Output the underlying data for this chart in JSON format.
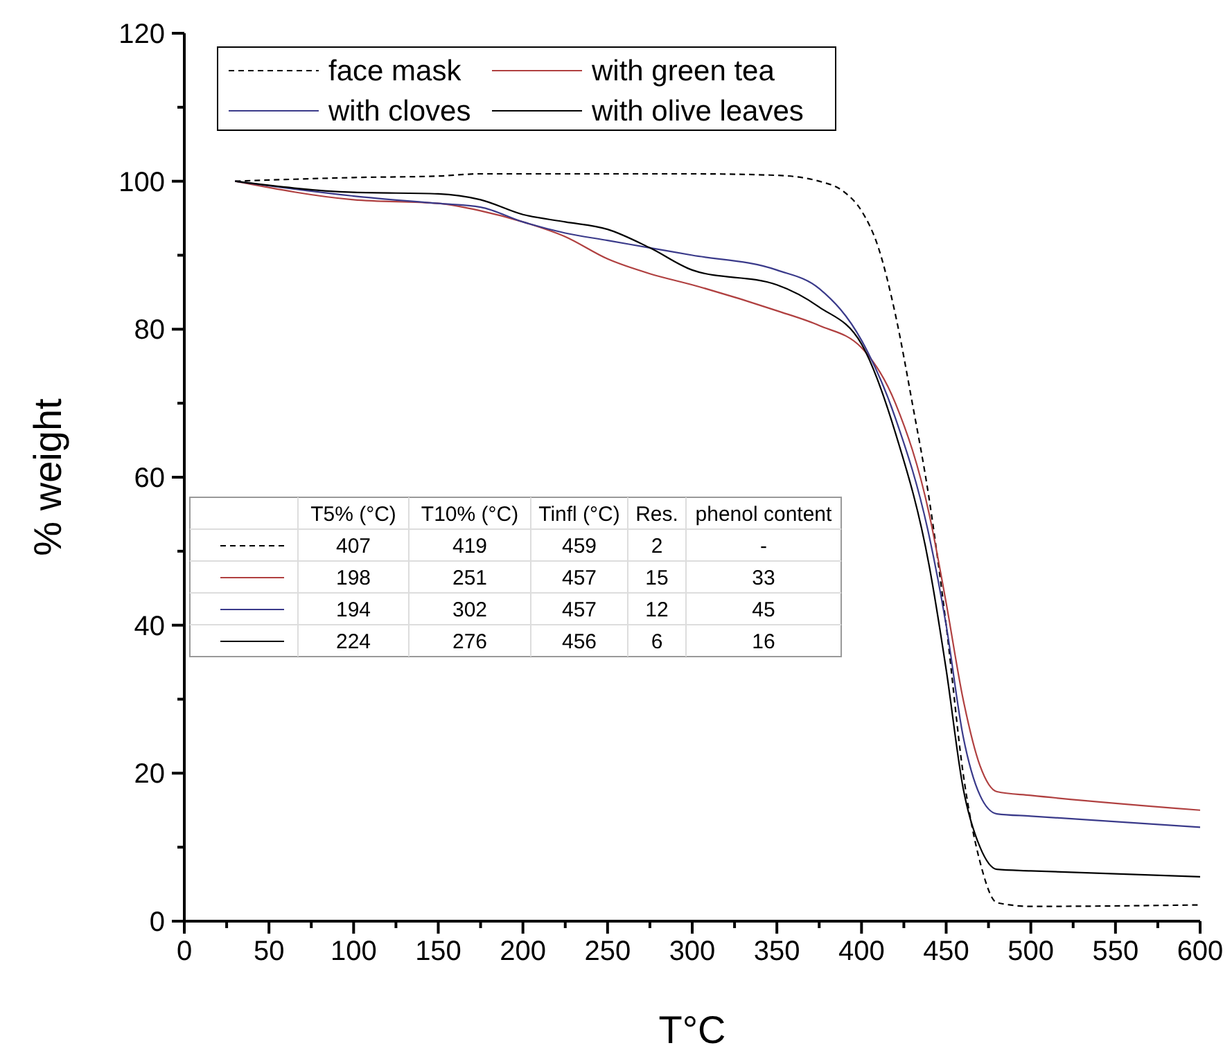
{
  "chart_data": {
    "type": "line",
    "xlabel": "T°C",
    "ylabel": "% weight",
    "xlim": [
      0,
      600
    ],
    "ylim": [
      0,
      120
    ],
    "xticks": [
      0,
      {
        "value": 25,
        "label": null
      },
      50,
      {
        "value": 75,
        "label": null
      },
      100,
      {
        "value": 125,
        "label": null
      },
      150,
      {
        "value": 175,
        "label": null
      },
      200,
      {
        "value": 225,
        "label": null
      },
      250,
      {
        "value": 275,
        "label": null
      },
      300,
      {
        "value": 325,
        "label": null
      },
      350,
      {
        "value": 375,
        "label": null
      },
      400,
      {
        "value": 425,
        "label": null
      },
      450,
      {
        "value": 475,
        "label": null
      },
      500,
      {
        "value": 525,
        "label": null
      },
      550,
      {
        "value": 575,
        "label": null
      },
      600
    ],
    "yticks": [
      0,
      {
        "value": 10,
        "label": null
      },
      20,
      {
        "value": 30,
        "label": null
      },
      40,
      {
        "value": 50,
        "label": null
      },
      60,
      {
        "value": 70,
        "label": null
      },
      80,
      {
        "value": 90,
        "label": null
      },
      100,
      {
        "value": 110,
        "label": null
      },
      120
    ],
    "grid": false,
    "legend": "top left",
    "x": [
      30,
      100,
      150,
      175,
      200,
      225,
      250,
      275,
      300,
      350,
      375,
      400,
      420,
      440,
      450,
      460,
      470,
      480,
      500,
      600
    ],
    "series": [
      {
        "name": "face mask",
        "color": "#000000",
        "line_style": "dashed",
        "x": [
          30,
          100,
          150,
          175,
          300,
          350,
          375,
          390,
          400,
          410,
          420,
          430,
          440,
          450,
          460,
          470,
          480,
          500,
          600
        ],
        "values": [
          100,
          100.5,
          100.7,
          101,
          101,
          100.8,
          100,
          98.5,
          96,
          91,
          82,
          70,
          57,
          40,
          20,
          8,
          2.5,
          2,
          2.2
        ]
      },
      {
        "name": "with green tea",
        "color": "#b04040",
        "line_style": "solid",
        "values": [
          100,
          97.5,
          97,
          96,
          94.5,
          92.5,
          89.5,
          87.5,
          86,
          82.5,
          80.5,
          77.5,
          70,
          55,
          43,
          30,
          21,
          17.5,
          17,
          15
        ]
      },
      {
        "name": "with cloves",
        "color": "#3a3a8a",
        "line_style": "solid",
        "values": [
          100,
          98,
          97,
          96.5,
          94.5,
          93,
          92,
          91,
          90,
          88,
          85.5,
          78.5,
          68,
          52,
          40,
          25,
          17,
          14.5,
          14.2,
          12.7
        ]
      },
      {
        "name": "with olive leaves",
        "color": "#000000",
        "line_style": "solid",
        "values": [
          100,
          98.5,
          98.3,
          97.5,
          95.5,
          94.5,
          93.5,
          91,
          88,
          86,
          83,
          78,
          66,
          48,
          34,
          18,
          10,
          7,
          6.8,
          6
        ]
      }
    ],
    "annotations": [
      "T5% (°C)",
      "T10% (°C)",
      "Tinfl (°C)",
      "Res.",
      "phenol content",
      "407",
      "419",
      "459",
      "2",
      "-",
      "198",
      "251",
      "457",
      "15",
      "33",
      "194",
      "302",
      "457",
      "12",
      "45",
      "224",
      "276",
      "456",
      "6",
      "16"
    ]
  }
}
